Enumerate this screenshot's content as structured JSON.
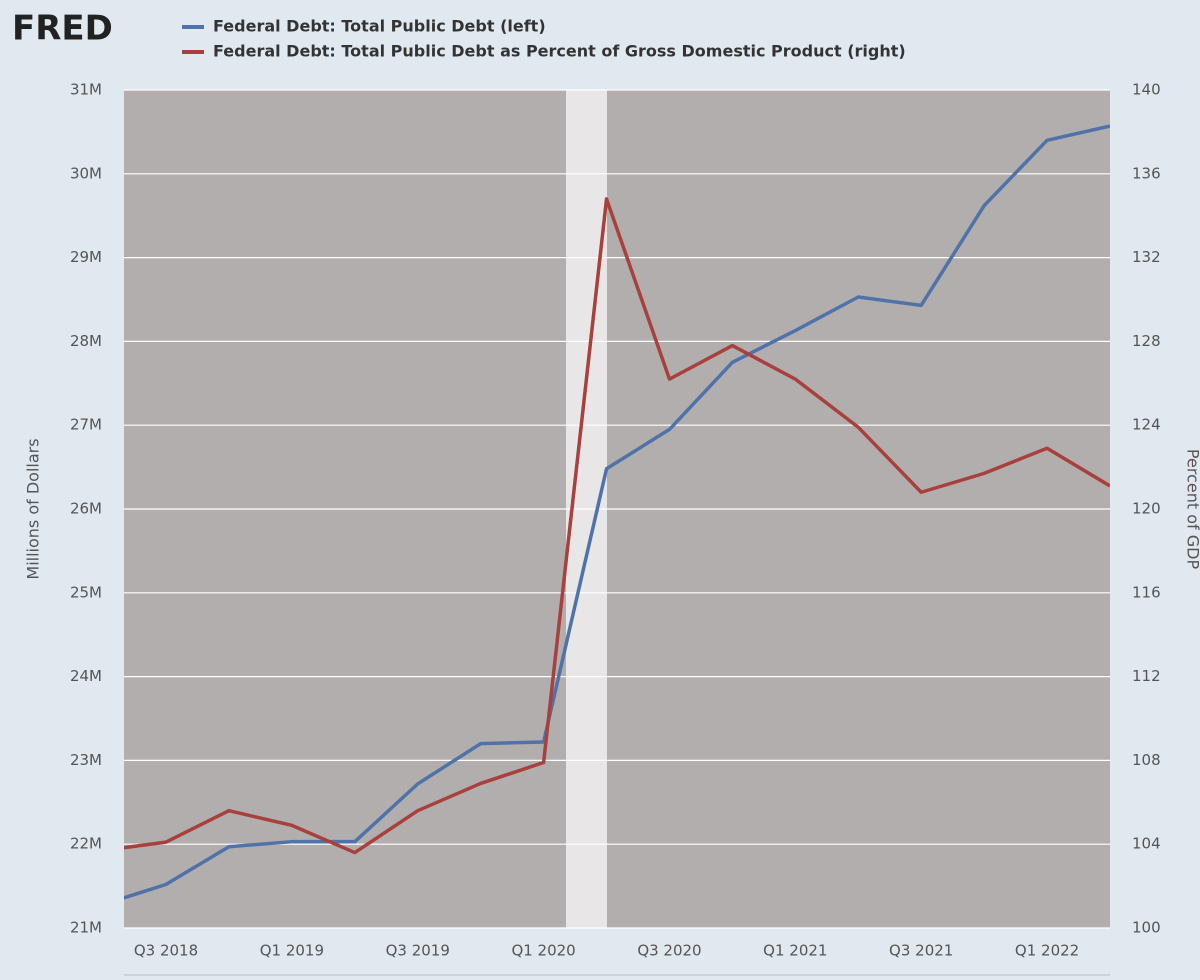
{
  "logo": "FRED",
  "chart_data": {
    "type": "line",
    "categories": [
      null,
      "Q3 2018",
      null,
      "Q1 2019",
      null,
      "Q3 2019",
      null,
      "Q1 2020",
      null,
      "Q3 2020",
      null,
      "Q1 2021",
      null,
      "Q3 2021",
      null,
      "Q1 2022",
      null
    ],
    "series": [
      {
        "name": "Federal Debt: Total Public Debt (left)",
        "color": "#4f73a8",
        "axis": "y",
        "values": [
          21280000,
          21520000,
          21970000,
          22030000,
          22030000,
          22720000,
          23200000,
          23220000,
          26480000,
          26950000,
          27750000,
          28130000,
          28530000,
          28430000,
          29620000,
          30400000,
          30570000
        ]
      },
      {
        "name": "Federal Debt: Total Public Debt as Percent of Gross Domestic Product (right)",
        "color": "#a8403d",
        "axis": "y2",
        "values": [
          103.7,
          104.1,
          105.6,
          104.9,
          103.6,
          105.6,
          106.9,
          107.9,
          134.8,
          126.2,
          127.8,
          126.2,
          123.9,
          120.8,
          121.7,
          122.9,
          121.1
        ]
      }
    ],
    "ylabel": "Millions of Dollars",
    "y2label": "Percent of GDP",
    "ylim": [
      21000000,
      31000000
    ],
    "yticks": [
      {
        "value": 21000000,
        "label": "21M"
      },
      {
        "value": 22000000,
        "label": "22M"
      },
      {
        "value": 23000000,
        "label": "23M"
      },
      {
        "value": 24000000,
        "label": "24M"
      },
      {
        "value": 25000000,
        "label": "25M"
      },
      {
        "value": 26000000,
        "label": "26M"
      },
      {
        "value": 27000000,
        "label": "27M"
      },
      {
        "value": 28000000,
        "label": "28M"
      },
      {
        "value": 29000000,
        "label": "29M"
      },
      {
        "value": 30000000,
        "label": "30M"
      },
      {
        "value": 31000000,
        "label": "31M"
      }
    ],
    "y2lim": [
      100,
      140
    ],
    "y2ticks": [
      100,
      104,
      108,
      112,
      116,
      120,
      124,
      128,
      132,
      136,
      140
    ],
    "grid": true
  }
}
